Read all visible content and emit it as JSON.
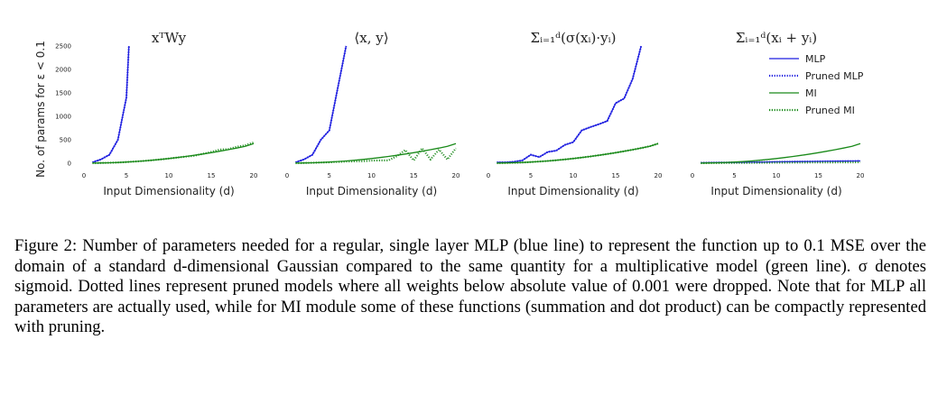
{
  "caption": "Figure 2: Number of parameters needed for a regular, single layer MLP (blue line) to represent the function up to 0.1 MSE over the domain of a standard d-dimensional Gaussian compared to the same quantity for a multiplicative model (green line). σ denotes sigmoid. Dotted lines represent pruned models where all weights below absolute value of 0.001 were dropped. Note that for MLP all parameters are actually used, while for MI module some of these functions (summation and dot product) can be compactly represented with pruning.",
  "colors": {
    "mlp": "#1f1fe0",
    "mi": "#1a8a1a"
  },
  "chart_data": [
    {
      "type": "line",
      "title": "xᵀWy",
      "xlabel": "Input Dimensionality (d)",
      "ylabel": "No. of params for ε < 0.1",
      "xlim": [
        0,
        20
      ],
      "ylim": [
        0,
        2500
      ],
      "xticks": [
        0,
        5,
        10,
        15,
        20
      ],
      "yticks": [
        0,
        500,
        1000,
        1500,
        2000,
        2500
      ],
      "series": [
        {
          "name": "MLP",
          "style": "solid",
          "color": "#1f1fe0",
          "x": [
            1,
            2,
            3,
            4,
            5,
            5.3
          ],
          "y": [
            20,
            80,
            180,
            500,
            1400,
            2500
          ]
        },
        {
          "name": "Pruned MLP",
          "style": "dotted",
          "color": "#1f1fe0",
          "x": [
            1,
            2,
            3,
            4,
            5,
            5.3
          ],
          "y": [
            20,
            80,
            180,
            500,
            1400,
            2500
          ]
        },
        {
          "name": "MI",
          "style": "solid",
          "color": "#1a8a1a",
          "x": [
            1,
            2,
            3,
            4,
            5,
            6,
            7,
            8,
            9,
            10,
            11,
            12,
            13,
            14,
            15,
            16,
            17,
            18,
            19,
            20
          ],
          "y": [
            2,
            5,
            10,
            16,
            25,
            36,
            49,
            64,
            81,
            100,
            121,
            144,
            169,
            196,
            225,
            256,
            289,
            324,
            361,
            420
          ]
        },
        {
          "name": "Pruned MI",
          "style": "dotted",
          "color": "#1a8a1a",
          "x": [
            1,
            2,
            3,
            4,
            5,
            6,
            7,
            8,
            9,
            10,
            11,
            12,
            13,
            14,
            15,
            16,
            17,
            18,
            19,
            20
          ],
          "y": [
            2,
            5,
            10,
            16,
            25,
            36,
            49,
            64,
            81,
            100,
            121,
            140,
            160,
            200,
            240,
            290,
            300,
            350,
            380,
            440
          ]
        }
      ]
    },
    {
      "type": "line",
      "title": "⟨x, y⟩",
      "xlabel": "Input Dimensionality (d)",
      "ylabel": "",
      "xlim": [
        0,
        20
      ],
      "ylim": [
        0,
        2500
      ],
      "xticks": [
        0,
        5,
        10,
        15,
        20
      ],
      "yticks": [],
      "series": [
        {
          "name": "MLP",
          "style": "solid",
          "color": "#1f1fe0",
          "x": [
            1,
            2,
            3,
            4,
            5,
            6,
            7
          ],
          "y": [
            20,
            80,
            180,
            500,
            700,
            1600,
            2500
          ]
        },
        {
          "name": "Pruned MLP",
          "style": "dotted",
          "color": "#1f1fe0",
          "x": [
            1,
            2,
            3,
            4,
            5,
            6,
            7
          ],
          "y": [
            20,
            80,
            180,
            500,
            700,
            1600,
            2500
          ]
        },
        {
          "name": "MI",
          "style": "solid",
          "color": "#1a8a1a",
          "x": [
            1,
            2,
            3,
            4,
            5,
            6,
            7,
            8,
            9,
            10,
            11,
            12,
            13,
            14,
            15,
            16,
            17,
            18,
            19,
            20
          ],
          "y": [
            2,
            5,
            10,
            16,
            25,
            36,
            49,
            64,
            81,
            100,
            121,
            144,
            169,
            196,
            225,
            256,
            289,
            324,
            361,
            420
          ]
        },
        {
          "name": "Pruned MI",
          "style": "dotted",
          "color": "#1a8a1a",
          "x": [
            1,
            2,
            3,
            4,
            5,
            6,
            7,
            8,
            9,
            10,
            11,
            12,
            13,
            14,
            15,
            16,
            17,
            18,
            19,
            20
          ],
          "y": [
            2,
            5,
            10,
            15,
            20,
            28,
            35,
            40,
            45,
            55,
            60,
            60,
            150,
            280,
            60,
            320,
            80,
            290,
            80,
            320
          ]
        }
      ]
    },
    {
      "type": "line",
      "title": "Σᵢ₌₁ᵈ(σ(xᵢ)·yᵢ)",
      "xlabel": "Input Dimensionality (d)",
      "ylabel": "",
      "xlim": [
        0,
        20
      ],
      "ylim": [
        0,
        2500
      ],
      "xticks": [
        0,
        5,
        10,
        15,
        20
      ],
      "yticks": [],
      "series": [
        {
          "name": "MLP",
          "style": "solid",
          "color": "#1f1fe0",
          "x": [
            1,
            2,
            3,
            4,
            5,
            6,
            7,
            8,
            9,
            10,
            11,
            12,
            13,
            14,
            15,
            16,
            17,
            18
          ],
          "y": [
            20,
            20,
            30,
            60,
            180,
            130,
            240,
            270,
            390,
            450,
            700,
            770,
            830,
            900,
            1280,
            1380,
            1800,
            2500
          ]
        },
        {
          "name": "Pruned MLP",
          "style": "dotted",
          "color": "#1f1fe0",
          "x": [
            1,
            2,
            3,
            4,
            5,
            6,
            7,
            8,
            9,
            10,
            11,
            12,
            13,
            14,
            15,
            16,
            17,
            18
          ],
          "y": [
            20,
            20,
            30,
            60,
            180,
            130,
            240,
            270,
            390,
            450,
            700,
            770,
            830,
            900,
            1280,
            1380,
            1800,
            2500
          ]
        },
        {
          "name": "MI",
          "style": "solid",
          "color": "#1a8a1a",
          "x": [
            1,
            2,
            3,
            4,
            5,
            6,
            7,
            8,
            9,
            10,
            11,
            12,
            13,
            14,
            15,
            16,
            17,
            18,
            19,
            20
          ],
          "y": [
            2,
            5,
            10,
            16,
            25,
            36,
            49,
            64,
            81,
            100,
            121,
            144,
            169,
            196,
            225,
            256,
            289,
            324,
            361,
            420
          ]
        },
        {
          "name": "Pruned MI",
          "style": "dotted",
          "color": "#1a8a1a",
          "x": [
            1,
            2,
            3,
            4,
            5,
            6,
            7,
            8,
            9,
            10,
            11,
            12,
            13,
            14,
            15,
            16,
            17,
            18,
            19,
            20
          ],
          "y": [
            2,
            5,
            10,
            16,
            25,
            36,
            49,
            64,
            81,
            100,
            121,
            144,
            169,
            196,
            225,
            256,
            289,
            324,
            361,
            420
          ]
        }
      ]
    },
    {
      "type": "line",
      "title": "Σᵢ₌₁ᵈ(xᵢ + yᵢ)",
      "xlabel": "Input Dimensionality (d)",
      "ylabel": "",
      "xlim": [
        0,
        20
      ],
      "ylim": [
        0,
        2500
      ],
      "xticks": [
        0,
        5,
        10,
        15,
        20
      ],
      "yticks": [],
      "legend": "top-right",
      "series": [
        {
          "name": "MLP",
          "style": "solid",
          "color": "#1f1fe0",
          "x": [
            1,
            2,
            3,
            4,
            5,
            6,
            7,
            8,
            9,
            10,
            11,
            12,
            13,
            14,
            15,
            16,
            17,
            18,
            19,
            20
          ],
          "y": [
            10,
            12,
            14,
            16,
            18,
            20,
            22,
            24,
            26,
            28,
            30,
            32,
            34,
            36,
            38,
            40,
            42,
            44,
            46,
            48
          ]
        },
        {
          "name": "Pruned MLP",
          "style": "dotted",
          "color": "#1f1fe0",
          "x": [
            1,
            2,
            3,
            4,
            5,
            6,
            7,
            8,
            9,
            10,
            11,
            12,
            13,
            14,
            15,
            16,
            17,
            18,
            19,
            20
          ],
          "y": [
            10,
            12,
            14,
            16,
            18,
            20,
            22,
            24,
            26,
            28,
            30,
            32,
            34,
            36,
            38,
            40,
            42,
            44,
            46,
            48
          ]
        },
        {
          "name": "MI",
          "style": "solid",
          "color": "#1a8a1a",
          "x": [
            1,
            2,
            3,
            4,
            5,
            6,
            7,
            8,
            9,
            10,
            11,
            12,
            13,
            14,
            15,
            16,
            17,
            18,
            19,
            20
          ],
          "y": [
            2,
            5,
            10,
            16,
            25,
            36,
            49,
            64,
            81,
            100,
            121,
            144,
            169,
            196,
            225,
            256,
            289,
            324,
            361,
            420
          ]
        },
        {
          "name": "Pruned MI",
          "style": "dotted",
          "color": "#1a8a1a",
          "x": [
            1,
            2,
            3,
            4,
            5,
            6,
            7,
            8,
            9,
            10,
            11,
            12,
            13,
            14,
            15,
            16,
            17,
            18,
            19,
            20
          ],
          "y": [
            2,
            3,
            4,
            5,
            6,
            7,
            8,
            9,
            10,
            11,
            12,
            13,
            14,
            15,
            16,
            17,
            18,
            19,
            20,
            21
          ]
        }
      ]
    }
  ]
}
